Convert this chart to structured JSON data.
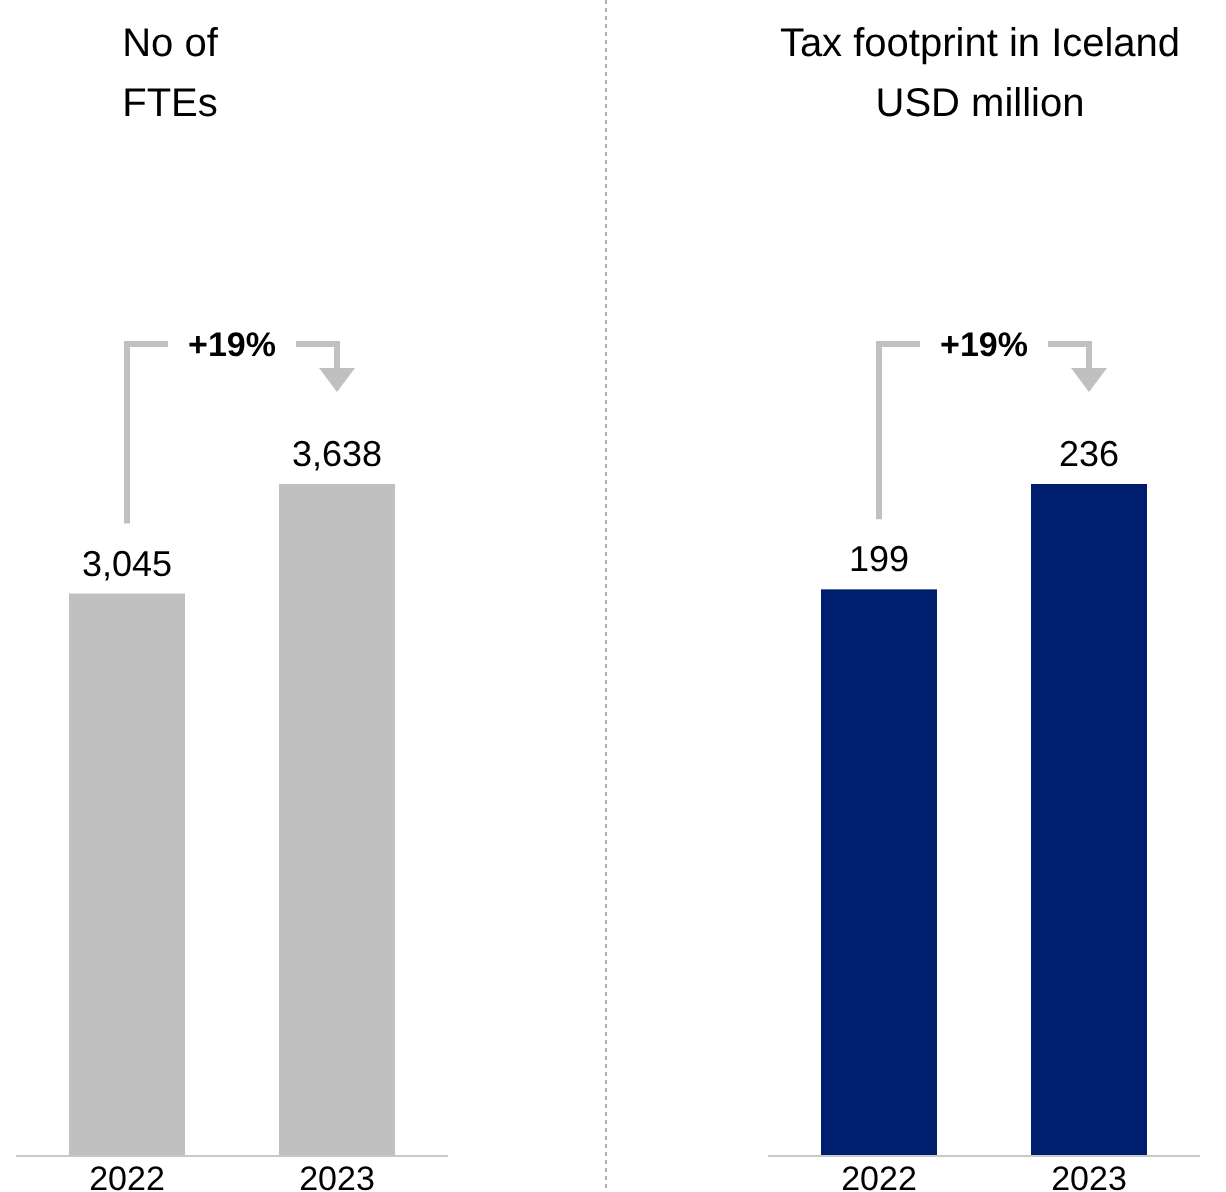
{
  "chart_data": [
    {
      "type": "bar",
      "title": "No of\nFTEs",
      "categories": [
        "2022",
        "2023"
      ],
      "values": [
        3045,
        3638
      ],
      "color": "#c0c0c0",
      "data_labels": true,
      "value_labels": [
        "3,045",
        "3,638"
      ],
      "annotations": [
        "+19%"
      ]
    },
    {
      "type": "bar",
      "title": "Tax footprint in Iceland\nUSD million",
      "categories": [
        "2022",
        "2023"
      ],
      "values": [
        199,
        236
      ],
      "color": "#001e6e",
      "data_labels": true,
      "value_labels": [
        "199",
        "236"
      ],
      "annotations": [
        "+19%"
      ]
    }
  ]
}
